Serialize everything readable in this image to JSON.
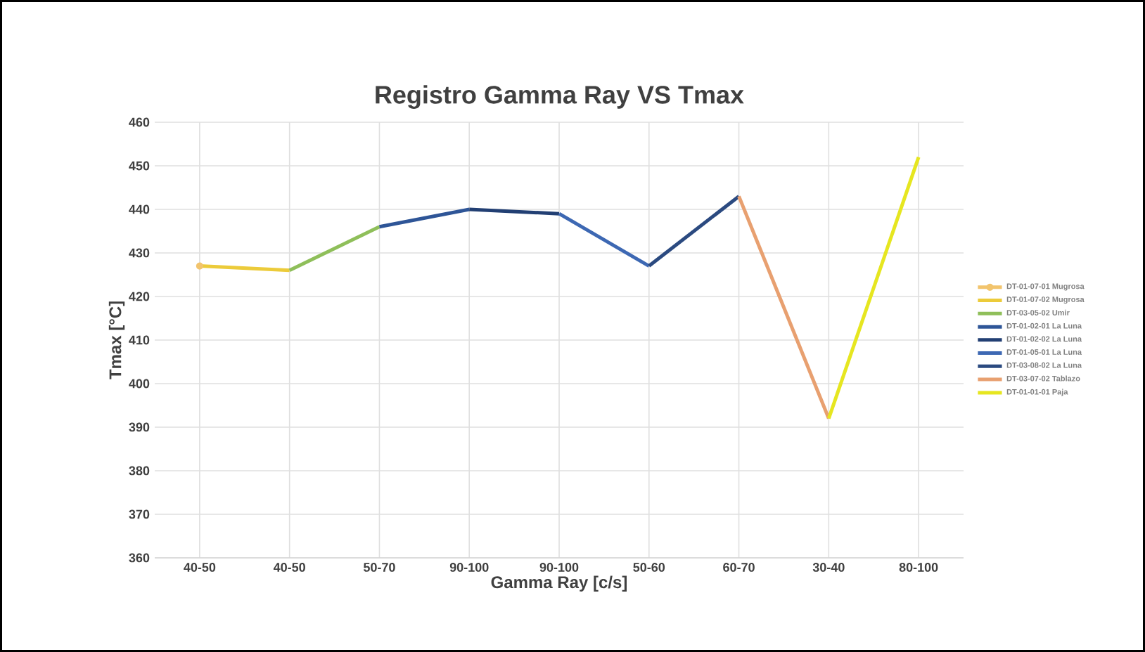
{
  "chart_data": {
    "type": "line",
    "title": "Registro Gamma Ray VS Tmax",
    "xlabel": "Gamma Ray [c/s]",
    "ylabel": "Tmax [°C]",
    "categories": [
      "40-50",
      "40-50",
      "50-70",
      "90-100",
      "90-100",
      "50-60",
      "60-70",
      "30-40",
      "80-100"
    ],
    "series": [
      {
        "name": "DT-01-07-01 Mugrosa",
        "color": "#f2c46d",
        "values": [
          427,
          null,
          null,
          null,
          null,
          null,
          null,
          null,
          null
        ]
      },
      {
        "name": "DT-01-07-02 Mugrosa",
        "color": "#eccb3a",
        "values": [
          427,
          426,
          null,
          null,
          null,
          null,
          null,
          null,
          null
        ]
      },
      {
        "name": "DT-03-05-02 Umir",
        "color": "#8fbf5a",
        "values": [
          null,
          426,
          436,
          null,
          null,
          null,
          null,
          null,
          null
        ]
      },
      {
        "name": "DT-01-02-01 La Luna",
        "color": "#2e5597",
        "values": [
          null,
          null,
          436,
          440,
          null,
          null,
          null,
          null,
          null
        ]
      },
      {
        "name": "DT-01-02-02 La Luna",
        "color": "#223f73",
        "values": [
          null,
          null,
          null,
          440,
          439,
          null,
          null,
          null,
          null
        ]
      },
      {
        "name": "DT-01-05-01 La Luna",
        "color": "#3d68b3",
        "values": [
          null,
          null,
          null,
          null,
          439,
          427,
          null,
          null,
          null
        ]
      },
      {
        "name": "DT-03-08-02 La Luna",
        "color": "#2b4a80",
        "values": [
          null,
          null,
          null,
          null,
          null,
          427,
          443,
          null,
          null
        ]
      },
      {
        "name": "DT-03-07-02 Tablazo",
        "color": "#e8a070",
        "values": [
          null,
          null,
          null,
          null,
          null,
          null,
          443,
          392,
          null
        ]
      },
      {
        "name": "DT-01-01-01 Paja",
        "color": "#e6e620",
        "values": [
          null,
          null,
          null,
          null,
          null,
          null,
          null,
          392,
          452
        ]
      }
    ],
    "ylim": [
      360,
      460
    ],
    "yticks": [
      360,
      370,
      380,
      390,
      400,
      410,
      420,
      430,
      440,
      450,
      460
    ],
    "grid": true,
    "legend": "right",
    "marker": "none",
    "line_style": "solid"
  }
}
